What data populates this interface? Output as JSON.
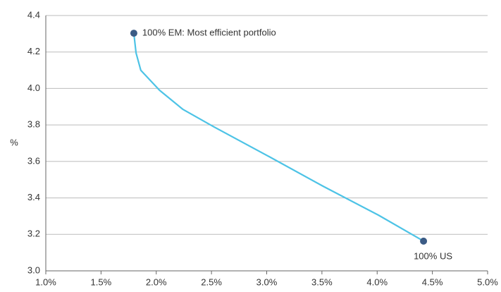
{
  "chart_data": {
    "type": "line",
    "y_label": "%",
    "series": [
      {
        "color": "#4dc3e6",
        "x": [
          1.797,
          1.817,
          1.86,
          2.03,
          2.24,
          2.52,
          3.02,
          3.51,
          4.01,
          4.42
        ],
        "values": [
          4.303,
          4.195,
          4.1,
          3.99,
          3.886,
          3.79,
          3.627,
          3.464,
          3.306,
          3.163
        ]
      }
    ],
    "annotations": [
      {
        "text": "100% EM: Most efficient portfolio",
        "x": 1.797,
        "y": 4.303,
        "color": "#3b5b85"
      },
      {
        "text": "100% US",
        "x": 4.42,
        "y": 3.163,
        "color": "#3b5b85"
      }
    ],
    "xlim": [
      1.0,
      5.0
    ],
    "xticks": [
      {
        "value": 1.0,
        "label": "1.0%"
      },
      {
        "value": 1.5,
        "label": "1.5%"
      },
      {
        "value": 2.0,
        "label": "2.0%"
      },
      {
        "value": 2.5,
        "label": "2.5%"
      },
      {
        "value": 3.0,
        "label": "3.0%"
      },
      {
        "value": 3.5,
        "label": "3.5%"
      },
      {
        "value": 4.0,
        "label": "4.0%"
      },
      {
        "value": 4.5,
        "label": "4.5%"
      },
      {
        "value": 5.0,
        "label": "5.0%"
      }
    ],
    "ylim": [
      3.0,
      4.4
    ],
    "yticks": [
      {
        "value": 3.0,
        "label": "3.0"
      },
      3.2,
      3.4,
      3.6,
      3.8,
      {
        "value": 4.0,
        "label": "4.0"
      },
      4.2,
      4.4
    ],
    "grid": true
  }
}
